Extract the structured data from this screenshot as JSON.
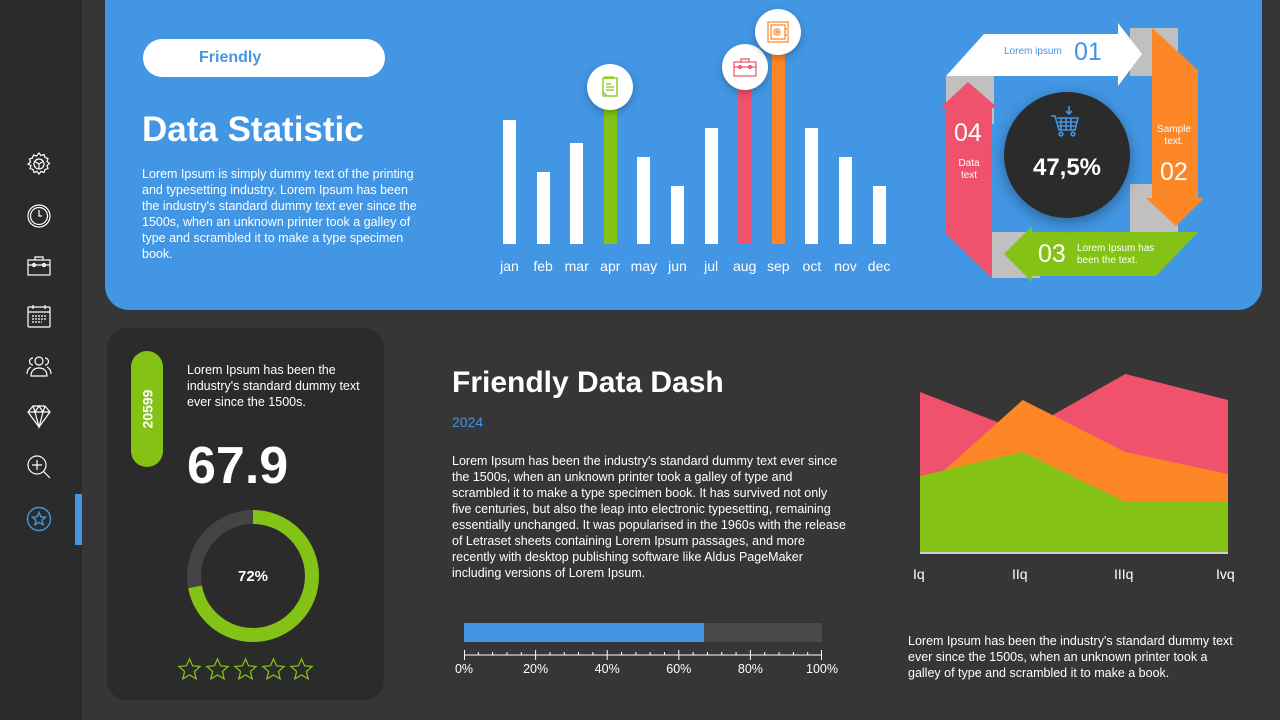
{
  "sidebar": {
    "items": [
      {
        "name": "settings",
        "icon": "gear-icon"
      },
      {
        "name": "clock",
        "icon": "clock-icon"
      },
      {
        "name": "toolbox",
        "icon": "toolbox-icon"
      },
      {
        "name": "calendar",
        "icon": "calendar-icon"
      },
      {
        "name": "users",
        "icon": "users-icon"
      },
      {
        "name": "diamond",
        "icon": "diamond-icon"
      },
      {
        "name": "zoom",
        "icon": "zoom-in-icon"
      },
      {
        "name": "favorites",
        "icon": "star-circle-icon",
        "active": true
      }
    ]
  },
  "header": {
    "pill_label": "Friendly",
    "title": "Data Statistic",
    "description": "Lorem Ipsum is simply dummy text of the printing and typesetting industry. Lorem Ipsum has been the industry's standard dummy text ever since the 1500s, when an unknown printer took a galley of type and scrambled it to make a type specimen book."
  },
  "cycle": {
    "center_value": "47,5%",
    "center_icon": "shopping-cart-icon",
    "steps": [
      {
        "num": "01",
        "text": "Lorem ipsum",
        "color": "#ffffff"
      },
      {
        "num": "02",
        "text": "Sample text.",
        "color": "#fd8626"
      },
      {
        "num": "03",
        "text": "Lorem Ipsum has been the text.",
        "color": "#84c315"
      },
      {
        "num": "04",
        "text": "Data text",
        "color": "#f0516c"
      }
    ]
  },
  "card": {
    "badge": "20599",
    "description": "Lorem Ipsum has been the industry's standard dummy text ever since the 1500s.",
    "big_number": "67.9",
    "donut_percent": "72%",
    "donut_value": 72,
    "stars": 5
  },
  "main": {
    "title": "Friendly Data Dash",
    "year": "2024",
    "description": "Lorem Ipsum has been the industry's standard dummy text ever since the 1500s, when an unknown printer took a galley of type and scrambled it to make a type specimen book. It has survived not only five centuries, but also the leap into electronic typesetting, remaining essentially unchanged. It was popularised in the 1960s with the release of Letraset sheets containing Lorem Ipsum passages, and more recently with desktop publishing software like Aldus PageMaker including versions of Lorem Ipsum.",
    "progress_percent": 67,
    "progress_ticks": [
      "0%",
      "20%",
      "40%",
      "60%",
      "80%",
      "100%"
    ]
  },
  "area_section": {
    "description": "Lorem Ipsum has been the industry's standard dummy text ever since the 1500s, when an unknown printer took a galley of type and scrambled it to make a book."
  },
  "colors": {
    "accent_blue": "#4296e4",
    "green": "#84c315",
    "orange": "#fd8626",
    "red": "#f0516c",
    "dark": "#2b2b2b",
    "background": "#363636"
  },
  "chart_data": [
    {
      "type": "bar",
      "title": "",
      "categories": [
        "jan",
        "feb",
        "mar",
        "apr",
        "may",
        "jun",
        "jul",
        "aug",
        "sep",
        "oct",
        "nov",
        "dec"
      ],
      "values": [
        124,
        72,
        101,
        150,
        87,
        58,
        116,
        170,
        205,
        116,
        87,
        58
      ],
      "highlight": {
        "apr": "#84c315",
        "aug": "#f0516c",
        "sep": "#fd8626"
      },
      "highlight_icons": {
        "apr": "notepad-icon",
        "aug": "briefcase-icon",
        "sep": "safe-icon"
      },
      "xlabel": "",
      "ylabel": "",
      "grid": false
    },
    {
      "type": "area",
      "title": "",
      "categories": [
        "Iq",
        "IIq",
        "IIIq",
        "Ivq"
      ],
      "series": [
        {
          "name": "red",
          "color": "#f0516c",
          "values": [
            160,
            120,
            178,
            152
          ]
        },
        {
          "name": "orange",
          "color": "#fd8626",
          "values": [
            60,
            152,
            100,
            78
          ]
        },
        {
          "name": "green",
          "color": "#84c315",
          "values": [
            76,
            100,
            50,
            50
          ]
        }
      ],
      "xlabel": "",
      "ylabel": "",
      "grid": false,
      "legend": "none"
    },
    {
      "type": "pie",
      "title": "",
      "categories": [
        "filled",
        "remaining"
      ],
      "values": [
        72,
        28
      ]
    }
  ]
}
